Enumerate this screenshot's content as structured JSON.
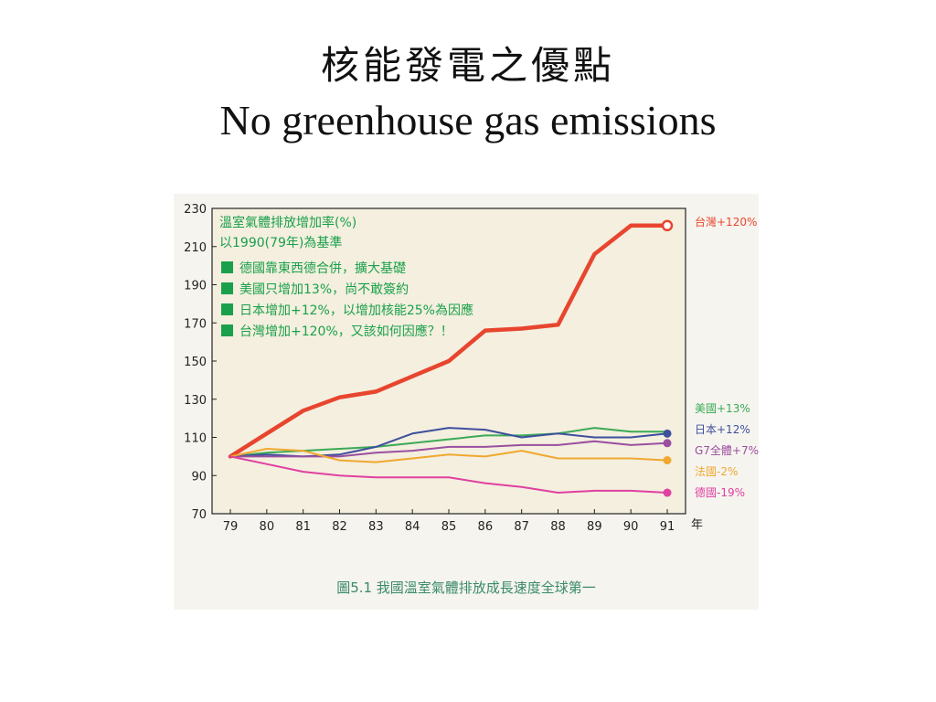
{
  "slide": {
    "title_zh": "核能發電之優點",
    "title_en": "No greenhouse gas emissions"
  },
  "chart_data": {
    "type": "line",
    "title": "溫室氣體排放增加率(%)",
    "subtitle": "以1990(79年)為基準",
    "caption": "圖5.1 我國溫室氣體排放成長速度全球第一",
    "xlabel_unit": "年",
    "x": [
      79,
      80,
      81,
      82,
      83,
      84,
      85,
      86,
      87,
      88,
      89,
      90,
      91
    ],
    "xlim": [
      79,
      91
    ],
    "ylim": [
      70,
      230
    ],
    "yticks": [
      70,
      90,
      110,
      130,
      150,
      170,
      190,
      210,
      230
    ],
    "grid": false,
    "notes": [
      "德國靠東西德合併，擴大基礎",
      "美國只增加13%，尚不敢簽約",
      "日本增加+12%，以增加核能25%為因應",
      "台灣增加+120%，又該如何因應？！"
    ],
    "note_color": "#1aa04a",
    "series": [
      {
        "name": "台灣+120%",
        "color": "#e8452f",
        "width": 4.5,
        "marker": "open",
        "values": [
          100,
          112,
          124,
          131,
          134,
          142,
          150,
          166,
          167,
          169,
          206,
          221,
          221
        ]
      },
      {
        "name": "美國+13%",
        "color": "#3aaa55",
        "width": 2,
        "marker": "none",
        "values": [
          100,
          102,
          103,
          104,
          105,
          107,
          109,
          111,
          111,
          112,
          115,
          113,
          113
        ]
      },
      {
        "name": "日本+12%",
        "color": "#3e4f9e",
        "width": 2,
        "marker": "filled",
        "values": [
          100,
          101,
          100,
          101,
          105,
          112,
          115,
          114,
          110,
          112,
          110,
          110,
          112
        ]
      },
      {
        "name": "G7全體+7%",
        "color": "#9b4fa0",
        "width": 2,
        "marker": "filled",
        "values": [
          100,
          100,
          100,
          100,
          102,
          103,
          105,
          105,
          106,
          106,
          108,
          106,
          107
        ]
      },
      {
        "name": "法國-2%",
        "color": "#f0a830",
        "width": 2,
        "marker": "filled",
        "values": [
          100,
          104,
          103,
          98,
          97,
          99,
          101,
          100,
          103,
          99,
          99,
          99,
          98
        ]
      },
      {
        "name": "德國-19%",
        "color": "#e040a0",
        "width": 2,
        "marker": "filled",
        "values": [
          100,
          96,
          92,
          90,
          89,
          89,
          89,
          86,
          84,
          81,
          82,
          82,
          81
        ]
      }
    ]
  }
}
